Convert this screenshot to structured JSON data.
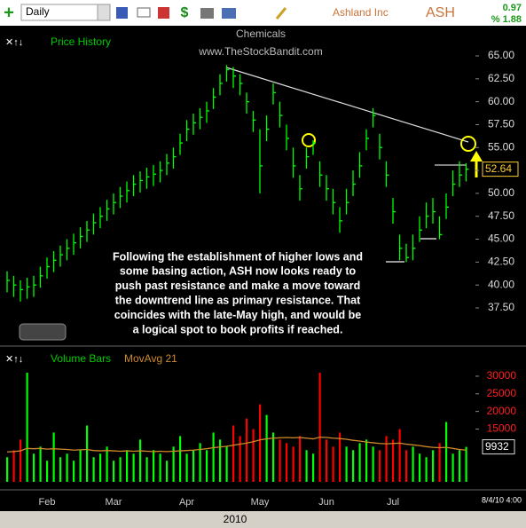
{
  "toolbar": {
    "interval": "Daily",
    "company": "Ashland Inc",
    "symbol": "ASH",
    "change": "0.97",
    "change_pct": "% 1.88"
  },
  "sector": "Chemicals",
  "watermark": "www.TheStockBandit.com",
  "annotation": [
    "Following the establishment of higher lows and",
    "some basing action, ASH now looks ready to",
    "push past resistance and make a move toward",
    "the downtrend line as primary resistance.  That",
    "coincides with the late-May high, and would be",
    "a logical spot to book profits if reached."
  ],
  "date_stamp": "8/4/10 4:00",
  "year": "2010",
  "chart_data": [
    {
      "type": "ohlc",
      "title": "Price History",
      "color": "#00ff00",
      "categories": [
        null,
        null,
        null,
        null,
        null,
        null,
        "Feb",
        null,
        null,
        null,
        null,
        null,
        null,
        null,
        null,
        null,
        "Mar",
        null,
        null,
        null,
        null,
        null,
        null,
        null,
        null,
        null,
        null,
        "Apr",
        null,
        null,
        null,
        null,
        null,
        null,
        null,
        null,
        null,
        null,
        "May",
        null,
        null,
        null,
        null,
        null,
        null,
        null,
        null,
        null,
        "Jun",
        null,
        null,
        null,
        null,
        null,
        null,
        null,
        null,
        null,
        "Jul",
        null,
        null,
        null,
        null,
        null,
        null,
        null,
        null,
        null,
        null,
        null
      ],
      "high": [
        41.5,
        41,
        40.5,
        40.8,
        41,
        42,
        43,
        43.7,
        44.3,
        45,
        45.6,
        46.3,
        47,
        47.8,
        48.5,
        49.3,
        50,
        50.7,
        51.3,
        52,
        52.4,
        52.8,
        53.1,
        53.5,
        54.3,
        55,
        56.5,
        58,
        58.7,
        59.3,
        60,
        61.5,
        63,
        64,
        63.8,
        63,
        61,
        59,
        57,
        58.5,
        62,
        60,
        57.5,
        55,
        52,
        55,
        55.8,
        53.5,
        52,
        50.5,
        48.5,
        50.5,
        52.5,
        54.5,
        57,
        59.3,
        56.5,
        53.5,
        49.5,
        45.5,
        44.5,
        45.5,
        47.5,
        49,
        49.5,
        47.5,
        50,
        52.5,
        53.5,
        53.3
      ],
      "low": [
        39.2,
        38.7,
        38.2,
        38.5,
        38.7,
        39.7,
        40.7,
        41.4,
        42,
        42.7,
        43.3,
        44,
        44.7,
        45.5,
        46.2,
        47,
        47.7,
        48.4,
        49,
        49.7,
        50.1,
        50.5,
        50.8,
        51.2,
        52,
        52.7,
        54.2,
        55.7,
        56.4,
        57,
        57.7,
        59.2,
        60.7,
        62.2,
        61.5,
        60.7,
        58.7,
        56.7,
        50,
        55.7,
        59.7,
        57.2,
        54.7,
        51.7,
        49.2,
        52.7,
        54.2,
        50.7,
        49.2,
        47.7,
        45.7,
        47.7,
        49.7,
        51.7,
        54.7,
        57.2,
        53.7,
        50.7,
        46.7,
        42.7,
        42.5,
        42.7,
        44.7,
        46.2,
        46.7,
        45,
        47.2,
        49.7,
        50.7,
        51.3
      ],
      "close": [
        40.5,
        40,
        39.5,
        39.8,
        40,
        41,
        42,
        42.7,
        43.3,
        44,
        44.6,
        45.3,
        46,
        46.8,
        47.5,
        48.3,
        49,
        49.7,
        50.3,
        51,
        51.4,
        51.8,
        52.1,
        52.5,
        53.3,
        54,
        55.5,
        57,
        57.7,
        58.3,
        59,
        60.5,
        62,
        63.5,
        62.8,
        62,
        60,
        58,
        53,
        57,
        61,
        58.5,
        56,
        53,
        50.5,
        54,
        55.5,
        52,
        50.5,
        49,
        47,
        49,
        51,
        53,
        56,
        58.5,
        55,
        52,
        48,
        44,
        43,
        44,
        46,
        47.5,
        48,
        45.5,
        48.5,
        51,
        52,
        52.64
      ],
      "last_label": "52.64",
      "ylim": [
        35.5,
        66.5
      ],
      "yticks": [
        {
          "value": 37.5,
          "label": "37.50"
        },
        {
          "value": 40,
          "label": "40.00"
        },
        {
          "value": 42.5,
          "label": "42.50"
        },
        {
          "value": 45,
          "label": "45.00"
        },
        {
          "value": 47.5,
          "label": "47.50"
        },
        {
          "value": 50,
          "label": "50.00"
        },
        {
          "value": 52.5,
          "label": "52.50"
        },
        {
          "value": 55,
          "label": "55.00"
        },
        {
          "value": 57.5,
          "label": "57.50"
        },
        {
          "value": 60,
          "label": "60.00"
        },
        {
          "value": 62.5,
          "label": "62.50"
        },
        {
          "value": 65,
          "label": "65.00"
        }
      ]
    },
    {
      "type": "bar",
      "title": "Volume Bars",
      "up_color": "#00ff00",
      "down_color": "#ff0000",
      "values": [
        7000,
        9000,
        12000,
        31000,
        8000,
        10000,
        6000,
        14000,
        7000,
        8000,
        6000,
        9000,
        16000,
        7000,
        8000,
        10000,
        6000,
        7000,
        9000,
        8000,
        12000,
        7000,
        9000,
        8000,
        6000,
        10000,
        13000,
        8000,
        9000,
        11000,
        9000,
        14000,
        12000,
        10000,
        16000,
        13000,
        18000,
        15000,
        22000,
        19000,
        14000,
        12000,
        11000,
        10000,
        13000,
        9000,
        8000,
        31000,
        12000,
        10000,
        14000,
        10000,
        9000,
        11000,
        12000,
        10000,
        9000,
        13000,
        12000,
        15000,
        9000,
        10000,
        8000,
        7000,
        9000,
        11000,
        17000,
        8000,
        9000,
        9932
      ],
      "moving_average": {
        "name": "MovAvg 21",
        "color": "#d08a2a",
        "values": [
          8500,
          8600,
          8800,
          9500,
          9400,
          9500,
          9300,
          9400,
          9300,
          9200,
          9000,
          9100,
          9200,
          8900,
          8800,
          8900,
          8800,
          8700,
          8800,
          8700,
          8800,
          8700,
          8600,
          8700,
          8600,
          8700,
          8800,
          8900,
          9000,
          9200,
          9400,
          9700,
          9900,
          10100,
          10400,
          10700,
          11000,
          11400,
          11900,
          12200,
          12400,
          12500,
          12600,
          12500,
          12600,
          12400,
          12200,
          12700,
          12600,
          12400,
          12300,
          12100,
          11800,
          11600,
          11300,
          11100,
          10900,
          10800,
          10900,
          11000,
          10700,
          10500,
          10300,
          10000,
          9800,
          9700,
          9800,
          9500,
          9200,
          9000
        ]
      },
      "ylim": [
        0,
        32000
      ],
      "yticks": [
        15000,
        20000,
        25000,
        30000
      ]
    }
  ]
}
